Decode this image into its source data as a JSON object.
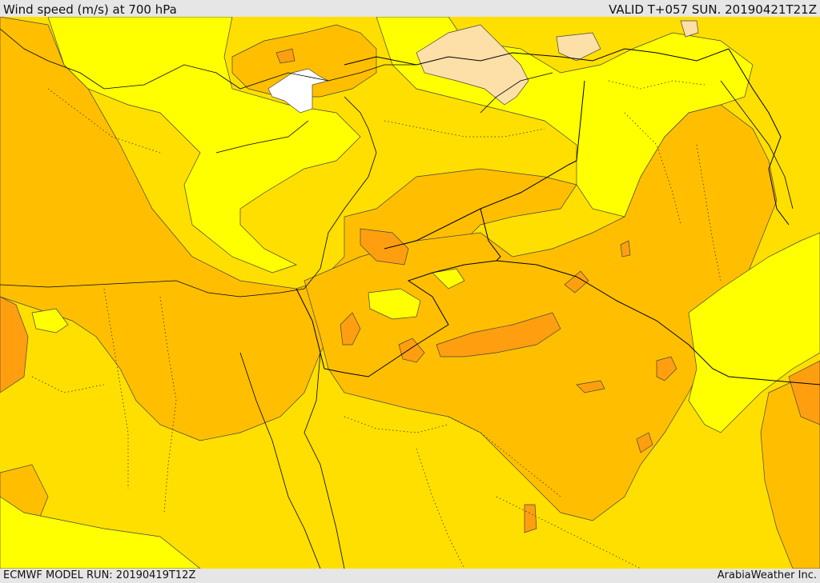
{
  "header": {
    "title": "Wind speed (m/s) at 700 hPa",
    "valid_time": "VALID T+057 SUN. 20190421T21Z"
  },
  "footer": {
    "model_run": "ECMWF MODEL RUN: 20190419T12Z",
    "credit": "ArabiaWeather Inc."
  },
  "palette": {
    "band_0_5": "#ffffff",
    "band_5_10": "#fde0a8",
    "band_10_15": "#ffff00",
    "band_15_20": "#ffdf00",
    "band_20_25": "#ffbf00",
    "band_25_30": "#ff9f10",
    "land_border": "#000000"
  }
}
